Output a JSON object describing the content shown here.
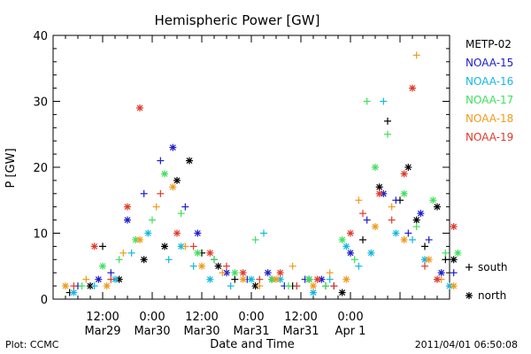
{
  "chart_data": {
    "type": "scatter",
    "title": "Hemispheric Power [GW]",
    "xlabel": "Date and Time",
    "ylabel": "P [GW]",
    "ylim": [
      0,
      40
    ],
    "yticks": [
      "0",
      "10",
      "20",
      "30",
      "40"
    ],
    "xlim_hours": [
      0,
      96
    ],
    "xtick_hours": [
      0,
      12,
      24,
      36,
      48,
      60,
      72,
      84,
      96
    ],
    "xtick_top": [
      "12:00",
      "0:00",
      "12:00",
      "0:00",
      "12:00",
      "0:00"
    ],
    "xtick_bottom": [
      "Mar29",
      "Mar30",
      "Mar30",
      "Mar31",
      "Mar31",
      "Apr 1"
    ],
    "xtick_label_hours": [
      12,
      24,
      36,
      48,
      60,
      72
    ],
    "markers": {
      "south": "+",
      "north": "*"
    },
    "marker_legend": [
      {
        "symbol": "+",
        "label": "south"
      },
      {
        "symbol": "*",
        "label": "north"
      }
    ],
    "footer_left": "Plot: CCMC",
    "footer_right": "2011/04/01 06:50:08",
    "series": [
      {
        "name": "METP-02",
        "color": "#000000",
        "points": [
          [
            4,
            1,
            "s"
          ],
          [
            9,
            2,
            "n"
          ],
          [
            12,
            8,
            "s"
          ],
          [
            16,
            3,
            "n"
          ],
          [
            22,
            6,
            "n"
          ],
          [
            27,
            8,
            "n"
          ],
          [
            30,
            18,
            "n"
          ],
          [
            33,
            21,
            "n"
          ],
          [
            36,
            7,
            "s"
          ],
          [
            40,
            5,
            "n"
          ],
          [
            44,
            3,
            "s"
          ],
          [
            49,
            2,
            "n"
          ],
          [
            53,
            3,
            "n"
          ],
          [
            58,
            2,
            "s"
          ],
          [
            62,
            3,
            "n"
          ],
          [
            66,
            2,
            "s"
          ],
          [
            70,
            1,
            "n"
          ],
          [
            75,
            9,
            "s"
          ],
          [
            79,
            17,
            "n"
          ],
          [
            81,
            27,
            "s"
          ],
          [
            84,
            15,
            "s"
          ],
          [
            86,
            20,
            "n"
          ],
          [
            88,
            12,
            "n"
          ],
          [
            90,
            8,
            "s"
          ],
          [
            93,
            14,
            "n"
          ],
          [
            95,
            6,
            "s"
          ],
          [
            97,
            6,
            "n"
          ]
        ]
      },
      {
        "name": "NOAA-15",
        "color": "#1c1ccf",
        "points": [
          [
            6,
            2,
            "s"
          ],
          [
            11,
            3,
            "n"
          ],
          [
            14,
            4,
            "s"
          ],
          [
            18,
            12,
            "n"
          ],
          [
            22,
            16,
            "s"
          ],
          [
            26,
            21,
            "s"
          ],
          [
            29,
            23,
            "n"
          ],
          [
            32,
            14,
            "s"
          ],
          [
            35,
            10,
            "n"
          ],
          [
            39,
            6,
            "s"
          ],
          [
            42,
            4,
            "n"
          ],
          [
            47,
            3,
            "s"
          ],
          [
            52,
            4,
            "n"
          ],
          [
            56,
            2,
            "s"
          ],
          [
            61,
            3,
            "s"
          ],
          [
            65,
            3,
            "n"
          ],
          [
            68,
            2,
            "s"
          ],
          [
            72,
            7,
            "n"
          ],
          [
            76,
            12,
            "s"
          ],
          [
            80,
            16,
            "n"
          ],
          [
            83,
            15,
            "s"
          ],
          [
            86,
            10,
            "s"
          ],
          [
            89,
            13,
            "n"
          ],
          [
            91,
            9,
            "s"
          ],
          [
            94,
            4,
            "n"
          ],
          [
            97,
            4,
            "s"
          ]
        ]
      },
      {
        "name": "NOAA-16",
        "color": "#11b8e0",
        "points": [
          [
            5,
            1,
            "n"
          ],
          [
            10,
            2,
            "s"
          ],
          [
            15,
            3,
            "n"
          ],
          [
            19,
            7,
            "s"
          ],
          [
            23,
            10,
            "n"
          ],
          [
            28,
            6,
            "s"
          ],
          [
            31,
            8,
            "n"
          ],
          [
            34,
            5,
            "s"
          ],
          [
            38,
            3,
            "n"
          ],
          [
            43,
            2,
            "s"
          ],
          [
            48,
            3,
            "n"
          ],
          [
            51,
            10,
            "s"
          ],
          [
            55,
            3,
            "n"
          ],
          [
            59,
            2,
            "s"
          ],
          [
            63,
            1,
            "n"
          ],
          [
            67,
            3,
            "s"
          ],
          [
            71,
            8,
            "n"
          ],
          [
            74,
            5,
            "s"
          ],
          [
            77,
            7,
            "n"
          ],
          [
            80,
            30,
            "s"
          ],
          [
            83,
            10,
            "n"
          ],
          [
            87,
            9,
            "s"
          ],
          [
            90,
            6,
            "n"
          ],
          [
            93,
            3,
            "s"
          ],
          [
            96,
            2,
            "n"
          ]
        ]
      },
      {
        "name": "NOAA-17",
        "color": "#3fe05c",
        "points": [
          [
            7,
            2,
            "s"
          ],
          [
            12,
            5,
            "n"
          ],
          [
            16,
            6,
            "s"
          ],
          [
            20,
            9,
            "n"
          ],
          [
            24,
            12,
            "s"
          ],
          [
            27,
            19,
            "n"
          ],
          [
            31,
            13,
            "s"
          ],
          [
            35,
            7,
            "n"
          ],
          [
            39,
            6,
            "s"
          ],
          [
            44,
            4,
            "n"
          ],
          [
            49,
            9,
            "s"
          ],
          [
            53,
            3,
            "n"
          ],
          [
            57,
            2,
            "s"
          ],
          [
            62,
            3,
            "n"
          ],
          [
            66,
            2,
            "s"
          ],
          [
            70,
            9,
            "n"
          ],
          [
            73,
            6,
            "s"
          ],
          [
            76,
            30,
            "s"
          ],
          [
            78,
            20,
            "n"
          ],
          [
            81,
            25,
            "s"
          ],
          [
            85,
            16,
            "n"
          ],
          [
            88,
            11,
            "s"
          ],
          [
            92,
            15,
            "n"
          ],
          [
            95,
            7,
            "s"
          ],
          [
            98,
            7,
            "n"
          ]
        ]
      },
      {
        "name": "NOAA-18",
        "color": "#f09a1c",
        "points": [
          [
            3,
            2,
            "n"
          ],
          [
            8,
            3,
            "s"
          ],
          [
            13,
            2,
            "n"
          ],
          [
            17,
            7,
            "s"
          ],
          [
            21,
            9,
            "n"
          ],
          [
            25,
            14,
            "s"
          ],
          [
            29,
            17,
            "n"
          ],
          [
            32,
            8,
            "s"
          ],
          [
            36,
            5,
            "n"
          ],
          [
            41,
            4,
            "s"
          ],
          [
            46,
            3,
            "n"
          ],
          [
            50,
            2,
            "s"
          ],
          [
            54,
            3,
            "n"
          ],
          [
            58,
            5,
            "s"
          ],
          [
            63,
            2,
            "n"
          ],
          [
            67,
            4,
            "s"
          ],
          [
            71,
            3,
            "n"
          ],
          [
            74,
            15,
            "s"
          ],
          [
            78,
            11,
            "n"
          ],
          [
            82,
            14,
            "s"
          ],
          [
            85,
            9,
            "n"
          ],
          [
            88,
            37,
            "s"
          ],
          [
            91,
            6,
            "n"
          ],
          [
            94,
            3,
            "s"
          ],
          [
            97,
            2,
            "n"
          ]
        ]
      },
      {
        "name": "NOAA-19",
        "color": "#e03a2a",
        "points": [
          [
            5,
            2,
            "s"
          ],
          [
            10,
            8,
            "n"
          ],
          [
            14,
            3,
            "s"
          ],
          [
            18,
            14,
            "n"
          ],
          [
            21,
            29,
            "n"
          ],
          [
            26,
            16,
            "s"
          ],
          [
            30,
            10,
            "n"
          ],
          [
            34,
            8,
            "s"
          ],
          [
            38,
            7,
            "n"
          ],
          [
            42,
            5,
            "s"
          ],
          [
            46,
            4,
            "n"
          ],
          [
            50,
            3,
            "s"
          ],
          [
            55,
            4,
            "n"
          ],
          [
            59,
            2,
            "s"
          ],
          [
            64,
            3,
            "n"
          ],
          [
            68,
            2,
            "s"
          ],
          [
            72,
            10,
            "n"
          ],
          [
            75,
            13,
            "s"
          ],
          [
            79,
            16,
            "n"
          ],
          [
            82,
            12,
            "s"
          ],
          [
            85,
            19,
            "n"
          ],
          [
            87,
            32,
            "n"
          ],
          [
            90,
            5,
            "s"
          ],
          [
            93,
            3,
            "n"
          ],
          [
            97,
            11,
            "n"
          ]
        ]
      }
    ]
  }
}
